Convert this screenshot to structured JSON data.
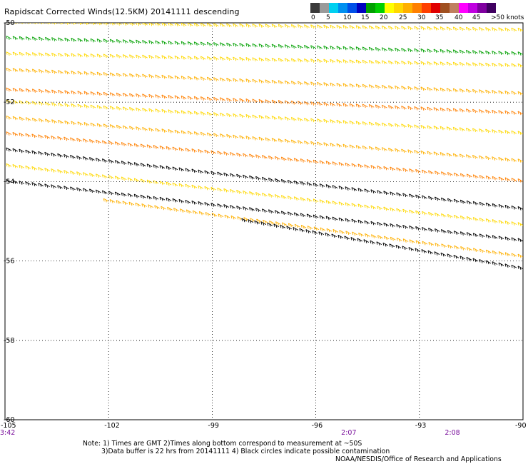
{
  "map": {
    "title": "Rapidscat Corrected Winds(12.5KM) 20141111 descending",
    "credit": "NOAA/NESDIS/Office of Research and Applications",
    "notes": [
      "Note: 1) Times are GMT 2)Times along bottom correspond to measurement at ~50S",
      "3)Data buffer is 22 hrs from 20141111 4) Black circles indicate possible contamination"
    ],
    "longitude_labels": [
      "-105",
      "-102",
      "-99",
      "-96",
      "-93",
      "-90"
    ],
    "latitude_labels": [
      "-50",
      "-52",
      "-54",
      "-56",
      "-58",
      "-60"
    ],
    "time_labels": [
      {
        "lon": -105,
        "text": "3:42"
      },
      {
        "lon": -95.1,
        "text": "2:07"
      },
      {
        "lon": -92.1,
        "text": "2:08"
      }
    ],
    "extent": {
      "lon_min": -105,
      "lon_max": -90,
      "lat_max": -50,
      "lat_min": -60
    }
  },
  "legend": {
    "unit_label": ">50 knots",
    "tick_labels": [
      "0",
      "5",
      "10",
      "15",
      "20",
      "25",
      "30",
      "35",
      "40",
      "45"
    ],
    "bins": [
      {
        "knots": 0,
        "color": "#3a3a3a"
      },
      {
        "knots": 2.5,
        "color": "#9a9a9a"
      },
      {
        "knots": 5,
        "color": "#00d0f0"
      },
      {
        "knots": 7.5,
        "color": "#0090f0"
      },
      {
        "knots": 10,
        "color": "#0050e8"
      },
      {
        "knots": 12.5,
        "color": "#0000c0"
      },
      {
        "knots": 15,
        "color": "#00a000"
      },
      {
        "knots": 17.5,
        "color": "#00d000"
      },
      {
        "knots": 20,
        "color": "#ffff00"
      },
      {
        "knots": 22.5,
        "color": "#ffd800"
      },
      {
        "knots": 25,
        "color": "#ffb000"
      },
      {
        "knots": 27.5,
        "color": "#ff8000"
      },
      {
        "knots": 30,
        "color": "#ff4000"
      },
      {
        "knots": 32.5,
        "color": "#e00000"
      },
      {
        "knots": 35,
        "color": "#a05020"
      },
      {
        "knots": 37.5,
        "color": "#c08060"
      },
      {
        "knots": 40,
        "color": "#ff00ff"
      },
      {
        "knots": 42.5,
        "color": "#c000e0"
      },
      {
        "knots": 45,
        "color": "#8000a0"
      },
      {
        "knots": 47.5,
        "color": "#400060"
      }
    ]
  },
  "wind_swaths": [
    {
      "lon_start": -105.0,
      "lat_start": -50.0,
      "lon_end": -90.0,
      "lat_end": -50.2,
      "color": "#ffd800",
      "flag": "n"
    },
    {
      "lon_start": -105.0,
      "lat_start": -50.4,
      "lon_end": -90.0,
      "lat_end": -50.8,
      "color": "#00a000",
      "flag": "n"
    },
    {
      "lon_start": -105.0,
      "lat_start": -50.8,
      "lon_end": -90.0,
      "lat_end": -51.1,
      "color": "#ffd800",
      "flag": "n"
    },
    {
      "lon_start": -105.0,
      "lat_start": -51.2,
      "lon_end": -90.0,
      "lat_end": -51.8,
      "color": "#ffb000",
      "flag": "n"
    },
    {
      "lon_start": -105.0,
      "lat_start": -51.7,
      "lon_end": -90.0,
      "lat_end": -52.3,
      "color": "#ff8000",
      "flag": "n"
    },
    {
      "lon_start": -105.0,
      "lat_start": -52.0,
      "lon_end": -90.0,
      "lat_end": -52.8,
      "color": "#ffd800",
      "flag": "n"
    },
    {
      "lon_start": -105.0,
      "lat_start": -52.4,
      "lon_end": -90.0,
      "lat_end": -53.5,
      "color": "#ffb000",
      "flag": "n"
    },
    {
      "lon_start": -105.0,
      "lat_start": -52.8,
      "lon_end": -90.0,
      "lat_end": -54.0,
      "color": "#ff8000",
      "flag": "n"
    },
    {
      "lon_start": -105.0,
      "lat_start": -53.2,
      "lon_end": -90.0,
      "lat_end": -54.7,
      "color": "#000000",
      "flag": "c"
    },
    {
      "lon_start": -105.0,
      "lat_start": -53.6,
      "lon_end": -90.0,
      "lat_end": -55.1,
      "color": "#ffd800",
      "flag": "n"
    },
    {
      "lon_start": -105.0,
      "lat_start": -54.0,
      "lon_end": -90.0,
      "lat_end": -55.5,
      "color": "#000000",
      "flag": "c"
    },
    {
      "lon_start": -102.0,
      "lat_start": -54.5,
      "lon_end": -90.0,
      "lat_end": -55.9,
      "color": "#ffb000",
      "flag": "n"
    },
    {
      "lon_start": -98.0,
      "lat_start": -55.0,
      "lon_end": -90.0,
      "lat_end": -56.2,
      "color": "#000000",
      "flag": "c"
    }
  ]
}
